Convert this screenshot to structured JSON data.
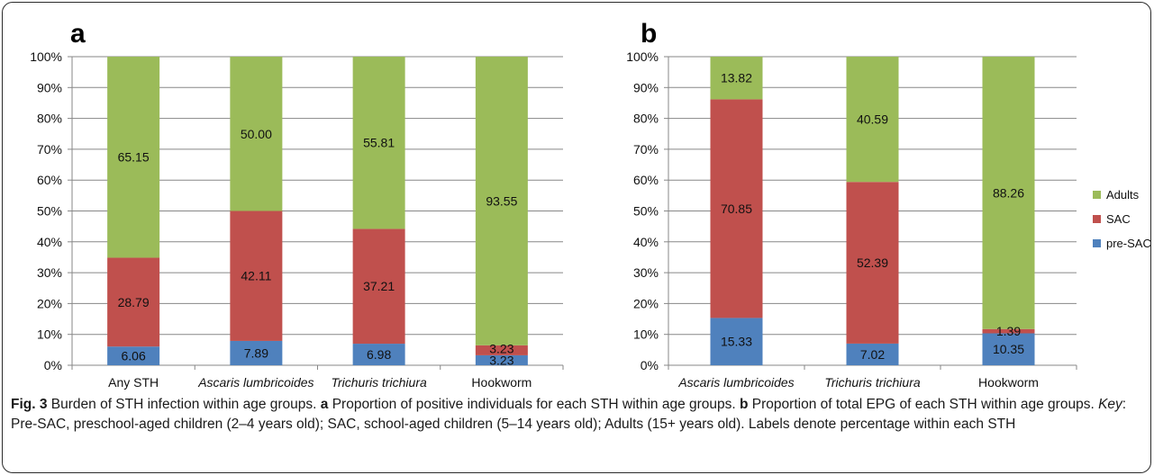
{
  "chart_data": [
    {
      "type": "bar",
      "stacked": true,
      "panel_label": "a",
      "categories": [
        "Any STH",
        "Ascaris lumbricoides",
        "Trichuris trichiura",
        "Hookworm"
      ],
      "category_italic": [
        false,
        true,
        true,
        false
      ],
      "series": [
        {
          "name": "pre-SAC",
          "values": [
            6.06,
            7.89,
            6.98,
            3.23
          ],
          "labels": [
            "6.06",
            "7.89",
            "6.98",
            "3.23"
          ],
          "color": "#4F81BD"
        },
        {
          "name": "SAC",
          "values": [
            28.79,
            42.11,
            37.21,
            3.23
          ],
          "labels": [
            "28.79",
            "42.11",
            "37.21",
            "3.23"
          ],
          "color": "#C0504D"
        },
        {
          "name": "Adults",
          "values": [
            65.15,
            50.0,
            55.81,
            93.55
          ],
          "labels": [
            "65.15",
            "50.00",
            "55.81",
            "93.55"
          ],
          "color": "#9BBB59"
        }
      ],
      "yticks": [
        "0%",
        "10%",
        "20%",
        "30%",
        "40%",
        "50%",
        "60%",
        "70%",
        "80%",
        "90%",
        "100%"
      ],
      "ylim": [
        0,
        100
      ],
      "grid": true
    },
    {
      "type": "bar",
      "stacked": true,
      "panel_label": "b",
      "categories": [
        "Ascaris lumbricoides",
        "Trichuris trichiura",
        "Hookworm"
      ],
      "category_italic": [
        true,
        true,
        false
      ],
      "series": [
        {
          "name": "pre-SAC",
          "values": [
            15.33,
            7.02,
            10.35
          ],
          "labels": [
            "15.33",
            "7.02",
            "10.35"
          ],
          "color": "#4F81BD"
        },
        {
          "name": "SAC",
          "values": [
            70.85,
            52.39,
            1.39
          ],
          "labels": [
            "70.85",
            "52.39",
            "1.39"
          ],
          "color": "#C0504D"
        },
        {
          "name": "Adults",
          "values": [
            13.82,
            40.59,
            88.26
          ],
          "labels": [
            "13.82",
            "40.59",
            "88.26"
          ],
          "color": "#9BBB59"
        }
      ],
      "yticks": [
        "0%",
        "10%",
        "20%",
        "30%",
        "40%",
        "50%",
        "60%",
        "70%",
        "80%",
        "90%",
        "100%"
      ],
      "ylim": [
        0,
        100
      ],
      "grid": true,
      "legend": {
        "placement": "right",
        "order": [
          "Adults",
          "SAC",
          "pre-SAC"
        ]
      }
    }
  ],
  "caption": {
    "fig_label": "Fig. 3",
    "p1": " Burden of STH infection within age groups. ",
    "a": "a",
    "p2": " Proportion of positive individuals for each STH within age groups. ",
    "b": "b",
    "p3": " Proportion of total EPG of each STH within age groups. ",
    "key": "Key",
    "p4": ": Pre-SAC, preschool-aged children (2–4 years old); SAC, school-aged children (5–14 years old); Adults (15+ years old). Labels denote percentage within each STH"
  }
}
